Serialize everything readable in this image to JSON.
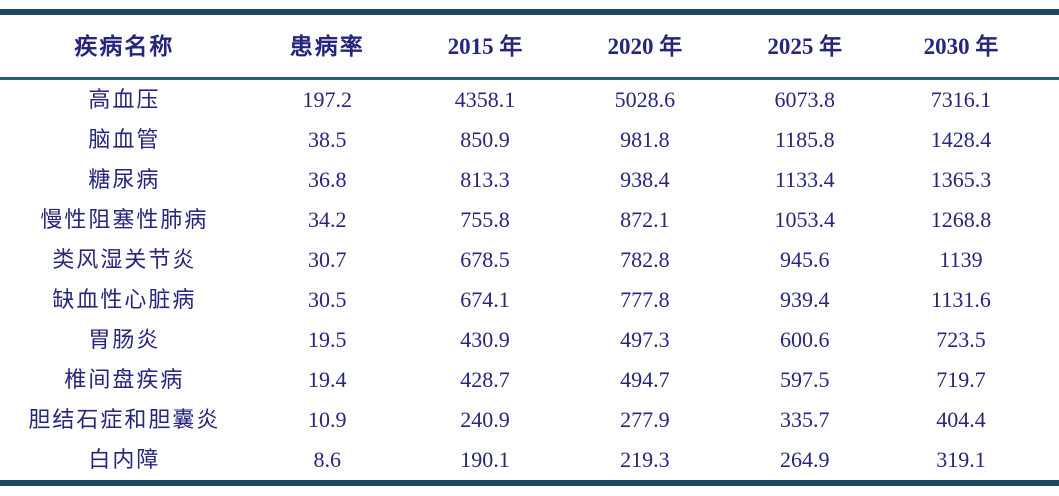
{
  "table": {
    "headers": [
      "疾病名称",
      "患病率",
      "2015 年",
      "2020 年",
      "2025 年",
      "2030 年"
    ],
    "rows": [
      {
        "name": "高血压",
        "rate": "197.2",
        "y2015": "4358.1",
        "y2020": "5028.6",
        "y2025": "6073.8",
        "y2030": "7316.1"
      },
      {
        "name": "脑血管",
        "rate": "38.5",
        "y2015": "850.9",
        "y2020": "981.8",
        "y2025": "1185.8",
        "y2030": "1428.4"
      },
      {
        "name": "糖尿病",
        "rate": "36.8",
        "y2015": "813.3",
        "y2020": "938.4",
        "y2025": "1133.4",
        "y2030": "1365.3"
      },
      {
        "name": "慢性阻塞性肺病",
        "rate": "34.2",
        "y2015": "755.8",
        "y2020": "872.1",
        "y2025": "1053.4",
        "y2030": "1268.8"
      },
      {
        "name": "类风湿关节炎",
        "rate": "30.7",
        "y2015": "678.5",
        "y2020": "782.8",
        "y2025": "945.6",
        "y2030": "1139"
      },
      {
        "name": "缺血性心脏病",
        "rate": "30.5",
        "y2015": "674.1",
        "y2020": "777.8",
        "y2025": "939.4",
        "y2030": "1131.6"
      },
      {
        "name": "胃肠炎",
        "rate": "19.5",
        "y2015": "430.9",
        "y2020": "497.3",
        "y2025": "600.6",
        "y2030": "723.5"
      },
      {
        "name": "椎间盘疾病",
        "rate": "19.4",
        "y2015": "428.7",
        "y2020": "494.7",
        "y2025": "597.5",
        "y2030": "719.7"
      },
      {
        "name": "胆结石症和胆囊炎",
        "rate": "10.9",
        "y2015": "240.9",
        "y2020": "277.9",
        "y2025": "335.7",
        "y2030": "404.4"
      },
      {
        "name": "白内障",
        "rate": "8.6",
        "y2015": "190.1",
        "y2020": "219.3",
        "y2025": "264.9",
        "y2030": "319.1"
      }
    ]
  },
  "colors": {
    "text": "#26267c",
    "rule_thick": "#1d4763",
    "rule_thin": "#2a5875",
    "background": "#ffffff"
  },
  "chart_data": {
    "type": "table",
    "title": "",
    "columns": [
      "疾病名称",
      "患病率",
      "2015 年",
      "2020 年",
      "2025 年",
      "2030 年"
    ],
    "rows": [
      [
        "高血压",
        197.2,
        4358.1,
        5028.6,
        6073.8,
        7316.1
      ],
      [
        "脑血管",
        38.5,
        850.9,
        981.8,
        1185.8,
        1428.4
      ],
      [
        "糖尿病",
        36.8,
        813.3,
        938.4,
        1133.4,
        1365.3
      ],
      [
        "慢性阻塞性肺病",
        34.2,
        755.8,
        872.1,
        1053.4,
        1268.8
      ],
      [
        "类风湿关节炎",
        30.7,
        678.5,
        782.8,
        945.6,
        1139
      ],
      [
        "缺血性心脏病",
        30.5,
        674.1,
        777.8,
        939.4,
        1131.6
      ],
      [
        "胃肠炎",
        19.5,
        430.9,
        497.3,
        600.6,
        723.5
      ],
      [
        "椎间盘疾病",
        19.4,
        428.7,
        494.7,
        597.5,
        719.7
      ],
      [
        "胆结石症和胆囊炎",
        10.9,
        240.9,
        277.9,
        335.7,
        404.4
      ],
      [
        "白内障",
        8.6,
        190.1,
        219.3,
        264.9,
        319.1
      ]
    ]
  }
}
